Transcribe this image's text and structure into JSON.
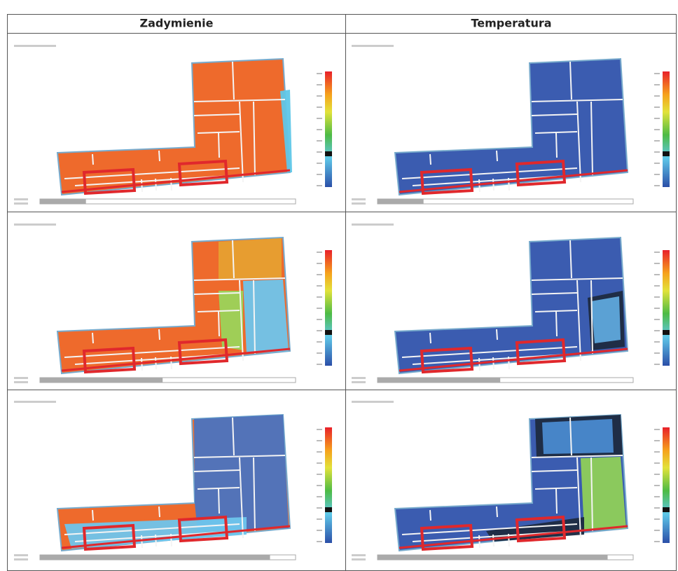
{
  "table": {
    "headers": [
      "Zadymienie",
      "Temperatura"
    ]
  }
}
